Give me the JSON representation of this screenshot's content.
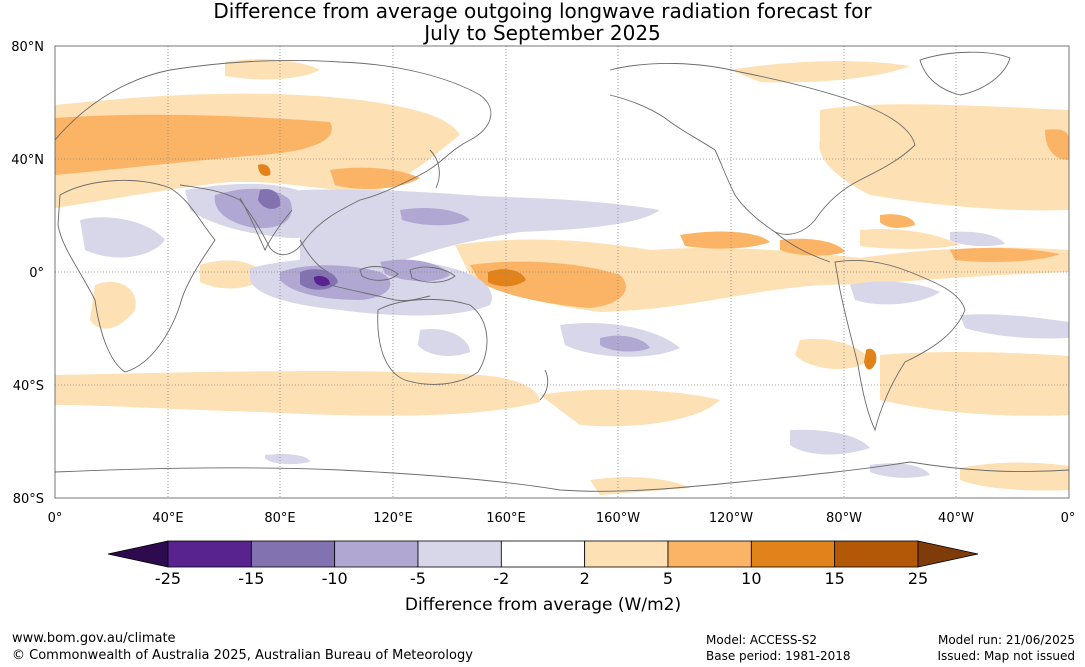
{
  "title": {
    "line1": "Difference from average outgoing longwave radiation forecast for",
    "line2": "July to September 2025"
  },
  "map": {
    "lat_labels": [
      "80°N",
      "40°N",
      "0°",
      "40°S",
      "80°S"
    ],
    "lon_labels": [
      "0°",
      "40°E",
      "80°E",
      "120°E",
      "160°E",
      "160°W",
      "120°W",
      "80°W",
      "40°W",
      "0°"
    ]
  },
  "legend": {
    "title": "Difference from average (W/m2)",
    "colors": [
      "#2d0b4e",
      "#58238f",
      "#8272b0",
      "#b0a8d2",
      "#d8d7ea",
      "#ffffff",
      "#fde0b3",
      "#fbb466",
      "#e1821b",
      "#b35806",
      "#7f3b08"
    ],
    "tick_labels": [
      "-25",
      "-15",
      "-10",
      "-5",
      "-2",
      "2",
      "5",
      "10",
      "15",
      "25"
    ]
  },
  "footer": {
    "url": "www.bom.gov.au/climate",
    "copyright": "© Commonwealth of Australia 2025, Australian Bureau of Meteorology",
    "model": "Model: ACCESS-S2",
    "base_period": "Base period: 1981-2018",
    "model_run": "Model run: 21/06/2025",
    "issued": "Issued: Map not issued"
  }
}
